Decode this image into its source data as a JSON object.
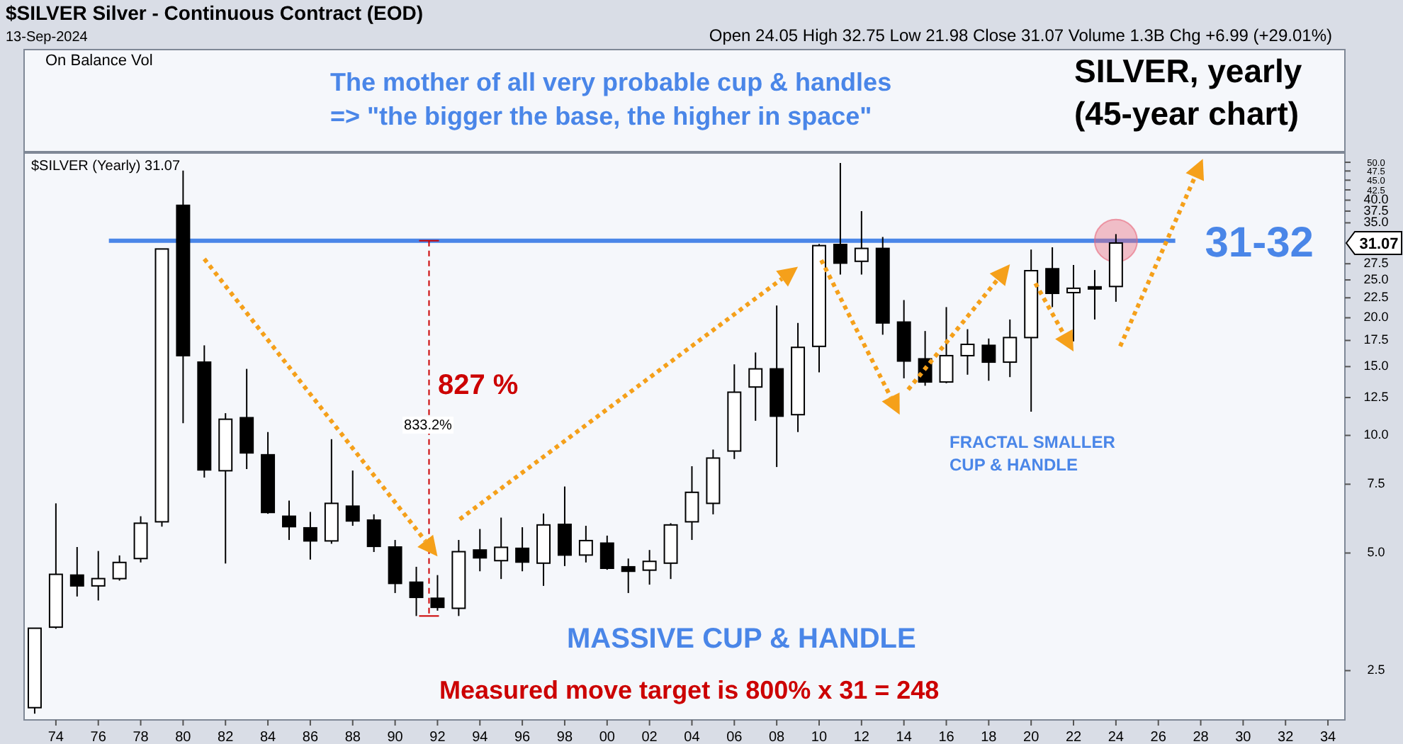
{
  "chart_data": {
    "type": "candlestick",
    "title": "$SILVER Silver - Continuous Contract (EOD)",
    "subtitle": "13-Sep-2024",
    "x": [
      1973,
      1974,
      1975,
      1976,
      1977,
      1978,
      1979,
      1980,
      1981,
      1982,
      1983,
      1984,
      1985,
      1986,
      1987,
      1988,
      1989,
      1990,
      1991,
      1992,
      1993,
      1994,
      1995,
      1996,
      1997,
      1998,
      1999,
      2000,
      2001,
      2002,
      2003,
      2004,
      2005,
      2006,
      2007,
      2008,
      2009,
      2010,
      2011,
      2012,
      2013,
      2014,
      2015,
      2016,
      2017,
      2018,
      2019,
      2020,
      2021,
      2022,
      2023,
      2024
    ],
    "ohlc": [
      [
        2.01,
        3.21,
        1.94,
        3.21
      ],
      [
        3.23,
        6.7,
        3.2,
        4.41
      ],
      [
        4.39,
        5.18,
        3.87,
        4.12
      ],
      [
        4.12,
        5.06,
        3.78,
        4.3
      ],
      [
        4.3,
        4.93,
        4.25,
        4.73
      ],
      [
        4.84,
        6.21,
        4.73,
        5.96
      ],
      [
        6.01,
        30,
        5.84,
        30
      ],
      [
        38.8,
        47.6,
        10.75,
        16
      ],
      [
        15.4,
        17,
        7.8,
        8.16
      ],
      [
        8.12,
        11.4,
        4.7,
        11
      ],
      [
        11.1,
        14.8,
        8.2,
        9.02
      ],
      [
        8.92,
        10.2,
        6.3,
        6.35
      ],
      [
        6.21,
        6.81,
        5.4,
        5.84
      ],
      [
        5.8,
        6.37,
        4.81,
        5.37
      ],
      [
        5.37,
        9.78,
        5.28,
        6.7
      ],
      [
        6.59,
        8.13,
        5.87,
        6.04
      ],
      [
        6.07,
        6.28,
        5.03,
        5.2
      ],
      [
        5.18,
        5.4,
        3.95,
        4.18
      ],
      [
        4.21,
        4.61,
        3.45,
        3.85
      ],
      [
        3.83,
        4.39,
        3.56,
        3.63
      ],
      [
        3.61,
        5.4,
        3.45,
        5.04
      ],
      [
        5.09,
        5.76,
        4.49,
        4.86
      ],
      [
        4.78,
        6.16,
        4.29,
        5.17
      ],
      [
        5.14,
        5.82,
        4.49,
        4.74
      ],
      [
        4.71,
        6.31,
        4.12,
        5.9
      ],
      [
        5.92,
        7.4,
        4.63,
        4.94
      ],
      [
        4.94,
        5.87,
        4.73,
        5.38
      ],
      [
        5.3,
        5.54,
        4.53,
        4.57
      ],
      [
        4.61,
        4.84,
        3.95,
        4.49
      ],
      [
        4.52,
        5.09,
        4.15,
        4.76
      ],
      [
        4.71,
        5.96,
        4.29,
        5.9
      ],
      [
        6.01,
        8.34,
        5.4,
        7.15
      ],
      [
        6.7,
        9.2,
        6.28,
        8.75
      ],
      [
        9.12,
        15.2,
        8.7,
        12.9
      ],
      [
        13.3,
        16.3,
        10.9,
        14.8
      ],
      [
        14.8,
        21.5,
        8.3,
        11.2
      ],
      [
        11.3,
        19.4,
        10.2,
        16.8
      ],
      [
        16.9,
        30.9,
        14.5,
        30.6
      ],
      [
        30.8,
        49.8,
        25.8,
        27.6
      ],
      [
        27.9,
        37.5,
        25.8,
        30.1
      ],
      [
        30.1,
        32.2,
        18.1,
        19.4
      ],
      [
        19.5,
        22.2,
        14,
        15.5
      ],
      [
        15.7,
        18.5,
        13.4,
        13.7
      ],
      [
        13.7,
        21.3,
        13.6,
        16
      ],
      [
        16,
        18.7,
        14.3,
        17.1
      ],
      [
        17,
        17.7,
        13.8,
        15.4
      ],
      [
        15.4,
        19.8,
        14.1,
        17.8
      ],
      [
        17.8,
        29.9,
        11.5,
        26.4
      ],
      [
        26.7,
        30.3,
        21.3,
        23.1
      ],
      [
        23.2,
        27.3,
        17.4,
        23.8
      ],
      [
        24,
        26.5,
        19.8,
        23.8
      ],
      [
        24.05,
        32.75,
        21.98,
        31.07
      ]
    ],
    "xlim": [
      1972.5,
      2034.8
    ],
    "xticks": [
      {
        "value": 1974,
        "label": "74"
      },
      {
        "value": 1976,
        "label": "76"
      },
      {
        "value": 1978,
        "label": "78"
      },
      {
        "value": 1980,
        "label": "80"
      },
      {
        "value": 1982,
        "label": "82"
      },
      {
        "value": 1984,
        "label": "84"
      },
      {
        "value": 1986,
        "label": "86"
      },
      {
        "value": 1988,
        "label": "88"
      },
      {
        "value": 1990,
        "label": "90"
      },
      {
        "value": 1992,
        "label": "92"
      },
      {
        "value": 1994,
        "label": "94"
      },
      {
        "value": 1996,
        "label": "96"
      },
      {
        "value": 1998,
        "label": "98"
      },
      {
        "value": 2000,
        "label": "00"
      },
      {
        "value": 2002,
        "label": "02"
      },
      {
        "value": 2004,
        "label": "04"
      },
      {
        "value": 2006,
        "label": "06"
      },
      {
        "value": 2008,
        "label": "08"
      },
      {
        "value": 2010,
        "label": "10"
      },
      {
        "value": 2012,
        "label": "12"
      },
      {
        "value": 2014,
        "label": "14"
      },
      {
        "value": 2016,
        "label": "16"
      },
      {
        "value": 2018,
        "label": "18"
      },
      {
        "value": 2020,
        "label": "20"
      },
      {
        "value": 2022,
        "label": "22"
      },
      {
        "value": 2024,
        "label": "24"
      },
      {
        "value": 2026,
        "label": "26"
      },
      {
        "value": 2028,
        "label": "28"
      },
      {
        "value": 2030,
        "label": "30"
      },
      {
        "value": 2032,
        "label": "32"
      },
      {
        "value": 2034,
        "label": "34"
      }
    ],
    "ylim": [
      1.87,
      52.8
    ],
    "log": true,
    "yticks": [
      2.5,
      {
        "value": 5,
        "label": "5.0"
      },
      7.5,
      {
        "value": 10,
        "label": "10.0"
      },
      12.5,
      {
        "value": 15,
        "label": "15.0"
      },
      17.5,
      {
        "value": 20,
        "label": "20.0"
      },
      22.5,
      {
        "value": 25,
        "label": "25.0"
      },
      27.5,
      {
        "value": 35,
        "label": "35.0"
      },
      37.5,
      {
        "value": 40,
        "label": "40.0"
      },
      42.5,
      {
        "value": 45,
        "label": "45.0"
      },
      47.5,
      {
        "value": 50,
        "label": "50.0"
      }
    ],
    "ref_lines": [
      {
        "axis": "y",
        "value": 31.5,
        "label": "31-32",
        "color": "#4a86e8"
      },
      {
        "axis": "x",
        "value": 1991.6,
        "color": "#cc0000",
        "line_style": "dashed"
      }
    ],
    "annotations": [
      "Open 24.05 High 32.75 Low 21.98 Close 31.07 Volume 1.3B Chg +6.99 (+29.01%)",
      "On Balance Vol",
      "The mother of all very probable cup & handles",
      "=> \"the bigger the base, the higher in space\"",
      "SILVER, yearly",
      "(45-year chart)",
      "$SILVER (Yearly) 31.07",
      "827 %",
      "833.2%",
      "FRACTAL SMALLER",
      "CUP & HANDLE",
      "MASSIVE CUP & HANDLE",
      "Measured move target is 800% x 31 = 248",
      "31.07"
    ],
    "grid": false
  }
}
